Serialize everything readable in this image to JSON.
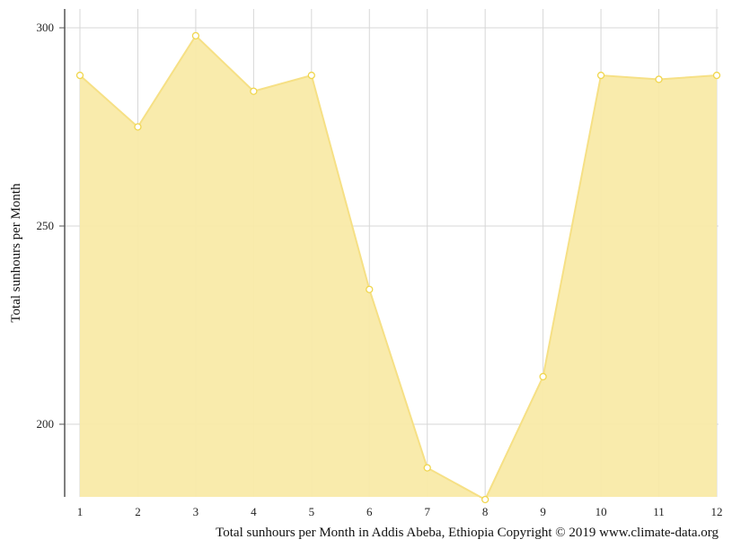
{
  "chart_data": {
    "type": "area",
    "title": "",
    "ylabel": "Total sunhours per Month",
    "xlabel": "",
    "x": [
      1,
      2,
      3,
      4,
      5,
      6,
      7,
      8,
      9,
      10,
      11,
      12
    ],
    "x_tick_labels": [
      "1",
      "2",
      "3",
      "4",
      "5",
      "6",
      "7",
      "8",
      "9",
      "10",
      "11",
      "12"
    ],
    "series": [
      {
        "name": "",
        "values": [
          288,
          275,
          298,
          284,
          288,
          234,
          189,
          181,
          212,
          288,
          287,
          288
        ]
      }
    ],
    "y_ticks": [
      200,
      250,
      300
    ],
    "y_tick_labels": [
      "200",
      "250",
      "300"
    ],
    "ylim": [
      181,
      305
    ],
    "grid": true,
    "legend": "none",
    "caption": "Total sunhours per Month in Addis Abeba, Ethiopia Copyright © 2019 www.climate-data.org",
    "colors": {
      "fill": "#f9eaa8",
      "line": "#f6e085",
      "marker_fill": "#ffffff",
      "marker_stroke": "#f0d64e",
      "grid": "#d7d7d7",
      "axis": "#555555"
    }
  }
}
